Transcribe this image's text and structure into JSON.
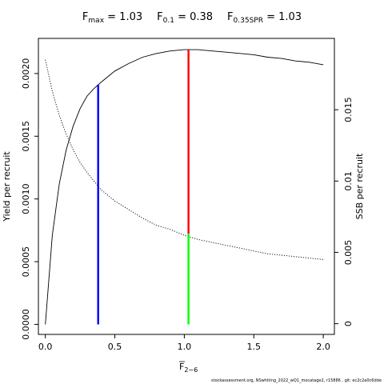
{
  "title": {
    "fmax_label": "F",
    "fmax_sub": "max",
    "fmax_value": " = 1.03",
    "f01_label": "F",
    "f01_sub": "0.1",
    "f01_value": " = 0.38",
    "fspr_label": "F",
    "fspr_sub": "0.35SPR",
    "fspr_value": " = 1.03"
  },
  "footer": "stockassessment.org, NSwhiting_2022_wQ1_mocatage2, r15886 , git: ec2c2a0c6dde",
  "colors": {
    "f01_line": "#0000ff",
    "fmax_line": "#ff0000",
    "fspr_line": "#00ff00",
    "curves": "#000000"
  },
  "chart_data": {
    "type": "line",
    "xlabel": "F",
    "xlabel_sub": "2−6",
    "ylabel": "Yield per recruit",
    "ylabel_right": "SSB per recruit",
    "xlim": [
      -0.05,
      2.08
    ],
    "ylim": [
      -8e-05,
      0.00228
    ],
    "ylim_right": [
      -0.00075,
      0.02
    ],
    "x_ticks": [
      0,
      0.5,
      1,
      1.5,
      2
    ],
    "x_tick_labels": [
      "0.0",
      "0.5",
      "1.0",
      "1.5",
      "2.0"
    ],
    "y_ticks": [
      0,
      0.0005,
      0.001,
      0.0015,
      0.002
    ],
    "y_tick_labels": [
      "0.0000",
      "0.0005",
      "0.0010",
      "0.0015",
      "0.0020"
    ],
    "y_ticks_right": [
      0,
      0.005,
      0.01,
      0.015
    ],
    "y_tick_labels_right": [
      "0",
      "0.005",
      "0.01",
      "0.015"
    ],
    "series": [
      {
        "name": "",
        "axis": "left",
        "style": "solid",
        "x": [
          0,
          0.05,
          0.1,
          0.15,
          0.2,
          0.25,
          0.3,
          0.35,
          0.4,
          0.5,
          0.6,
          0.7,
          0.8,
          0.9,
          1.0,
          1.1,
          1.2,
          1.3,
          1.4,
          1.5,
          1.6,
          1.7,
          1.8,
          1.9,
          2.0
        ],
        "values": [
          0,
          0.00071,
          0.00112,
          0.00139,
          0.00158,
          0.00172,
          0.00182,
          0.00188,
          0.00193,
          0.00202,
          0.00208,
          0.00213,
          0.00216,
          0.00218,
          0.00219,
          0.00219,
          0.00218,
          0.00217,
          0.00216,
          0.00215,
          0.00213,
          0.00212,
          0.0021,
          0.00209,
          0.00207
        ]
      },
      {
        "name": "",
        "axis": "right",
        "style": "dotted",
        "x": [
          0,
          0.05,
          0.1,
          0.15,
          0.2,
          0.25,
          0.3,
          0.35,
          0.4,
          0.5,
          0.6,
          0.7,
          0.8,
          0.9,
          1.0,
          1.1,
          1.2,
          1.3,
          1.4,
          1.5,
          1.6,
          1.7,
          1.8,
          1.9,
          2.0
        ],
        "values": [
          0.0185,
          0.0163,
          0.0146,
          0.0133,
          0.0122,
          0.0113,
          0.0106,
          0.01,
          0.0094,
          0.0086,
          0.008,
          0.0074,
          0.0069,
          0.0066,
          0.0062,
          0.0059,
          0.0057,
          0.0055,
          0.0053,
          0.0051,
          0.0049,
          0.0048,
          0.0047,
          0.0046,
          0.0045
        ]
      }
    ],
    "reference_lines": [
      {
        "name": "F0.1",
        "x": 0.38,
        "top_yield": 0.00191,
        "color": "#0000ff",
        "top_series": "yield",
        "bottom": 0
      },
      {
        "name": "Fmax",
        "x": 1.03,
        "top_yield": 0.00219,
        "color": "#ff0000",
        "top_series": "yield",
        "bottom_ssb": 0.0063
      },
      {
        "name": "F0.35SPR",
        "x": 1.03,
        "top_ssb": 0.0063,
        "color": "#00ff00",
        "bottom": 0
      }
    ]
  }
}
